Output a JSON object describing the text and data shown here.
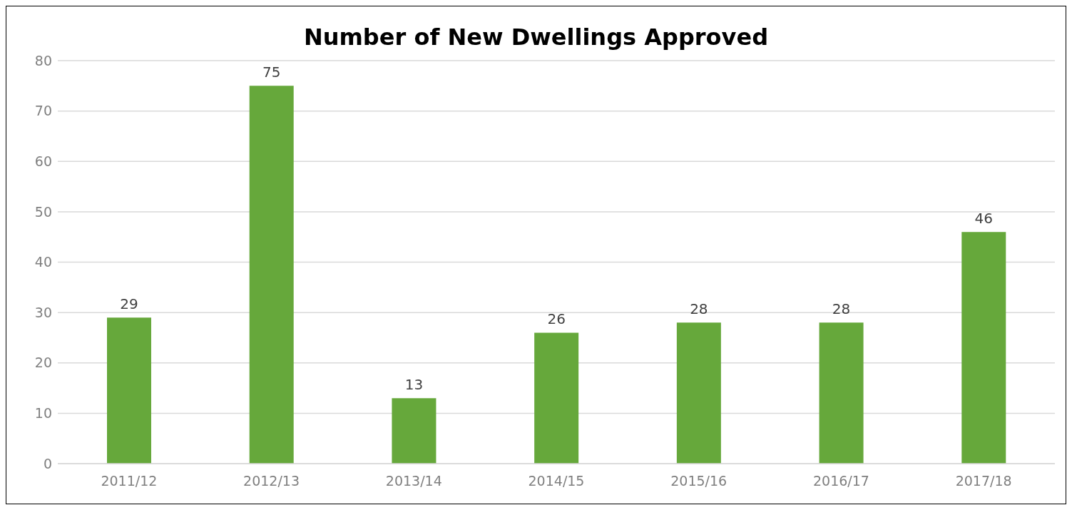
{
  "chart_data": {
    "type": "bar",
    "title": "Number of New Dwellings Approved",
    "categories": [
      "2011/12",
      "2012/13",
      "2013/14",
      "2014/15",
      "2015/16",
      "2016/17",
      "2017/18"
    ],
    "values": [
      29,
      75,
      13,
      26,
      28,
      28,
      46
    ],
    "color": "#66a83b",
    "ylim": [
      0,
      80
    ],
    "yticks": [
      0,
      10,
      20,
      30,
      40,
      50,
      60,
      70,
      80
    ],
    "grid": "y",
    "data_labels": true
  }
}
